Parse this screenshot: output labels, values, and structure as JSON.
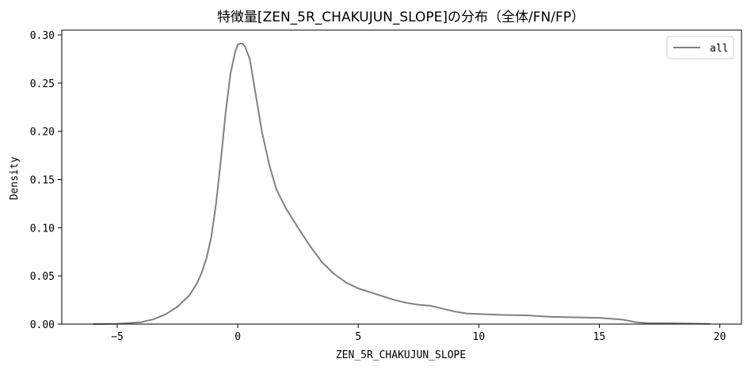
{
  "chart_data": {
    "type": "line",
    "title": "特徴量[ZEN_5R_CHAKUJUN_SLOPE]の分布（全体/FN/FP）",
    "xlabel": "ZEN_5R_CHAKUJUN_SLOPE",
    "ylabel": "Density",
    "xlim": [
      -7.3,
      20.9
    ],
    "ylim": [
      0,
      0.305
    ],
    "xticks": [
      -5,
      0,
      5,
      10,
      15,
      20
    ],
    "xtick_labels": [
      "−5",
      "0",
      "5",
      "10",
      "15",
      "20"
    ],
    "yticks": [
      0.0,
      0.05,
      0.1,
      0.15,
      0.2,
      0.25,
      0.3
    ],
    "ytick_labels": [
      "0.00",
      "0.05",
      "0.10",
      "0.15",
      "0.20",
      "0.25",
      "0.30"
    ],
    "grid": false,
    "legend": {
      "location": "top-right",
      "entries": [
        "all"
      ]
    },
    "series": [
      {
        "name": "all",
        "color": "#808080",
        "x": [
          -6.0,
          -5.0,
          -4.0,
          -3.5,
          -3.0,
          -2.5,
          -2.0,
          -1.7,
          -1.5,
          -1.3,
          -1.1,
          -0.9,
          -0.7,
          -0.5,
          -0.3,
          -0.1,
          0.0,
          0.1,
          0.2,
          0.3,
          0.5,
          0.7,
          1.0,
          1.3,
          1.6,
          2.0,
          2.5,
          3.0,
          3.5,
          4.0,
          4.5,
          5.0,
          5.5,
          6.0,
          6.5,
          7.0,
          7.5,
          8.0,
          8.5,
          9.0,
          9.5,
          10.0,
          11.0,
          12.0,
          13.0,
          14.0,
          15.0,
          16.0,
          16.5,
          17.0,
          18.0,
          19.0,
          19.6
        ],
        "y": [
          0.0,
          0.0003,
          0.002,
          0.005,
          0.01,
          0.018,
          0.03,
          0.042,
          0.053,
          0.068,
          0.09,
          0.125,
          0.17,
          0.22,
          0.26,
          0.283,
          0.29,
          0.291,
          0.291,
          0.288,
          0.275,
          0.245,
          0.2,
          0.166,
          0.14,
          0.12,
          0.1,
          0.081,
          0.064,
          0.052,
          0.043,
          0.037,
          0.033,
          0.029,
          0.025,
          0.022,
          0.02,
          0.019,
          0.016,
          0.013,
          0.011,
          0.0105,
          0.0095,
          0.009,
          0.0075,
          0.007,
          0.0065,
          0.0045,
          0.002,
          0.001,
          0.0008,
          0.0005,
          0.0002
        ]
      }
    ]
  }
}
